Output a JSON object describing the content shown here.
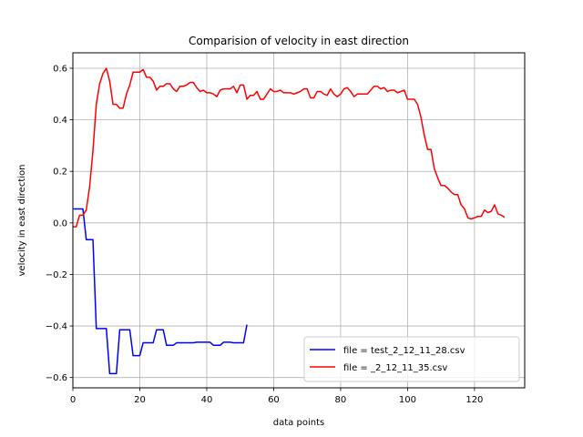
{
  "chart_data": {
    "type": "line",
    "title": "Comparision of velocity in east direction",
    "xlabel": "data points",
    "ylabel": "velocity in east direction",
    "xlim": [
      0,
      135
    ],
    "ylim": [
      -0.64,
      0.66
    ],
    "xticks": [
      0,
      20,
      40,
      60,
      80,
      100,
      120
    ],
    "yticks": [
      -0.6,
      -0.4,
      -0.2,
      0.0,
      0.2,
      0.4,
      0.6
    ],
    "xtick_labels": [
      "0",
      "20",
      "40",
      "60",
      "80",
      "100",
      "120"
    ],
    "ytick_labels": [
      "−0.6",
      "−0.4",
      "−0.2",
      "0.0",
      "0.2",
      "0.4",
      "0.6"
    ],
    "grid": true,
    "legend_position": "lower-right",
    "series": [
      {
        "name": "file = test_2_12_11_28.csv",
        "color": "#0000ff",
        "x": [
          0,
          1,
          2,
          3,
          4,
          5,
          6,
          7,
          8,
          9,
          10,
          11,
          12,
          13,
          14,
          15,
          16,
          17,
          18,
          19,
          20,
          21,
          22,
          23,
          24,
          25,
          26,
          27,
          28,
          29,
          30,
          31,
          32,
          33,
          34,
          35,
          36,
          37,
          38,
          39,
          40,
          41,
          42,
          43,
          44,
          45,
          46,
          47,
          48,
          49,
          50,
          51,
          52
        ],
        "values": [
          0.054,
          0.054,
          0.054,
          0.054,
          -0.065,
          -0.065,
          -0.065,
          -0.41,
          -0.41,
          -0.41,
          -0.41,
          -0.585,
          -0.585,
          -0.585,
          -0.415,
          -0.415,
          -0.415,
          -0.415,
          -0.515,
          -0.515,
          -0.515,
          -0.465,
          -0.465,
          -0.465,
          -0.465,
          -0.415,
          -0.415,
          -0.415,
          -0.475,
          -0.475,
          -0.475,
          -0.465,
          -0.465,
          -0.465,
          -0.465,
          -0.465,
          -0.465,
          -0.463,
          -0.463,
          -0.463,
          -0.463,
          -0.463,
          -0.475,
          -0.475,
          -0.475,
          -0.463,
          -0.463,
          -0.463,
          -0.465,
          -0.465,
          -0.465,
          -0.465,
          -0.395
        ]
      },
      {
        "name": "file = _2_12_11_35.csv",
        "color": "#ff0000",
        "x": [
          0,
          1,
          2,
          3,
          4,
          5,
          6,
          7,
          8,
          9,
          10,
          11,
          12,
          13,
          14,
          15,
          16,
          17,
          18,
          19,
          20,
          21,
          22,
          23,
          24,
          25,
          26,
          27,
          28,
          29,
          30,
          31,
          32,
          33,
          34,
          35,
          36,
          37,
          38,
          39,
          40,
          41,
          42,
          43,
          44,
          45,
          46,
          47,
          48,
          49,
          50,
          51,
          52,
          53,
          54,
          55,
          56,
          57,
          58,
          59,
          60,
          61,
          62,
          63,
          64,
          65,
          66,
          67,
          68,
          69,
          70,
          71,
          72,
          73,
          74,
          75,
          76,
          77,
          78,
          79,
          80,
          81,
          82,
          83,
          84,
          85,
          86,
          87,
          88,
          89,
          90,
          91,
          92,
          93,
          94,
          95,
          96,
          97,
          98,
          99,
          100,
          101,
          102,
          103,
          104,
          105,
          106,
          107,
          108,
          109,
          110,
          111,
          112,
          113,
          114,
          115,
          116,
          117,
          118,
          119,
          120,
          121,
          122,
          123,
          124,
          125,
          126,
          127,
          128,
          129
        ],
        "values": [
          -0.015,
          -0.015,
          0.03,
          0.03,
          0.05,
          0.14,
          0.28,
          0.46,
          0.54,
          0.58,
          0.6,
          0.55,
          0.46,
          0.46,
          0.445,
          0.445,
          0.5,
          0.535,
          0.585,
          0.585,
          0.585,
          0.595,
          0.565,
          0.565,
          0.55,
          0.515,
          0.53,
          0.53,
          0.54,
          0.54,
          0.52,
          0.51,
          0.53,
          0.53,
          0.535,
          0.545,
          0.545,
          0.525,
          0.51,
          0.515,
          0.505,
          0.505,
          0.5,
          0.49,
          0.515,
          0.52,
          0.52,
          0.52,
          0.53,
          0.505,
          0.535,
          0.535,
          0.48,
          0.495,
          0.495,
          0.51,
          0.48,
          0.48,
          0.5,
          0.52,
          0.51,
          0.51,
          0.515,
          0.505,
          0.505,
          0.505,
          0.5,
          0.505,
          0.51,
          0.52,
          0.52,
          0.485,
          0.485,
          0.51,
          0.51,
          0.5,
          0.495,
          0.52,
          0.5,
          0.49,
          0.5,
          0.52,
          0.525,
          0.51,
          0.49,
          0.5,
          0.5,
          0.5,
          0.5,
          0.515,
          0.53,
          0.53,
          0.52,
          0.525,
          0.51,
          0.515,
          0.515,
          0.505,
          0.51,
          0.515,
          0.48,
          0.48,
          0.48,
          0.46,
          0.41,
          0.34,
          0.285,
          0.285,
          0.21,
          0.175,
          0.145,
          0.145,
          0.135,
          0.12,
          0.11,
          0.11,
          0.07,
          0.055,
          0.02,
          0.015,
          0.02,
          0.025,
          0.025,
          0.05,
          0.04,
          0.045,
          0.07,
          0.035,
          0.03,
          0.022
        ]
      }
    ]
  }
}
